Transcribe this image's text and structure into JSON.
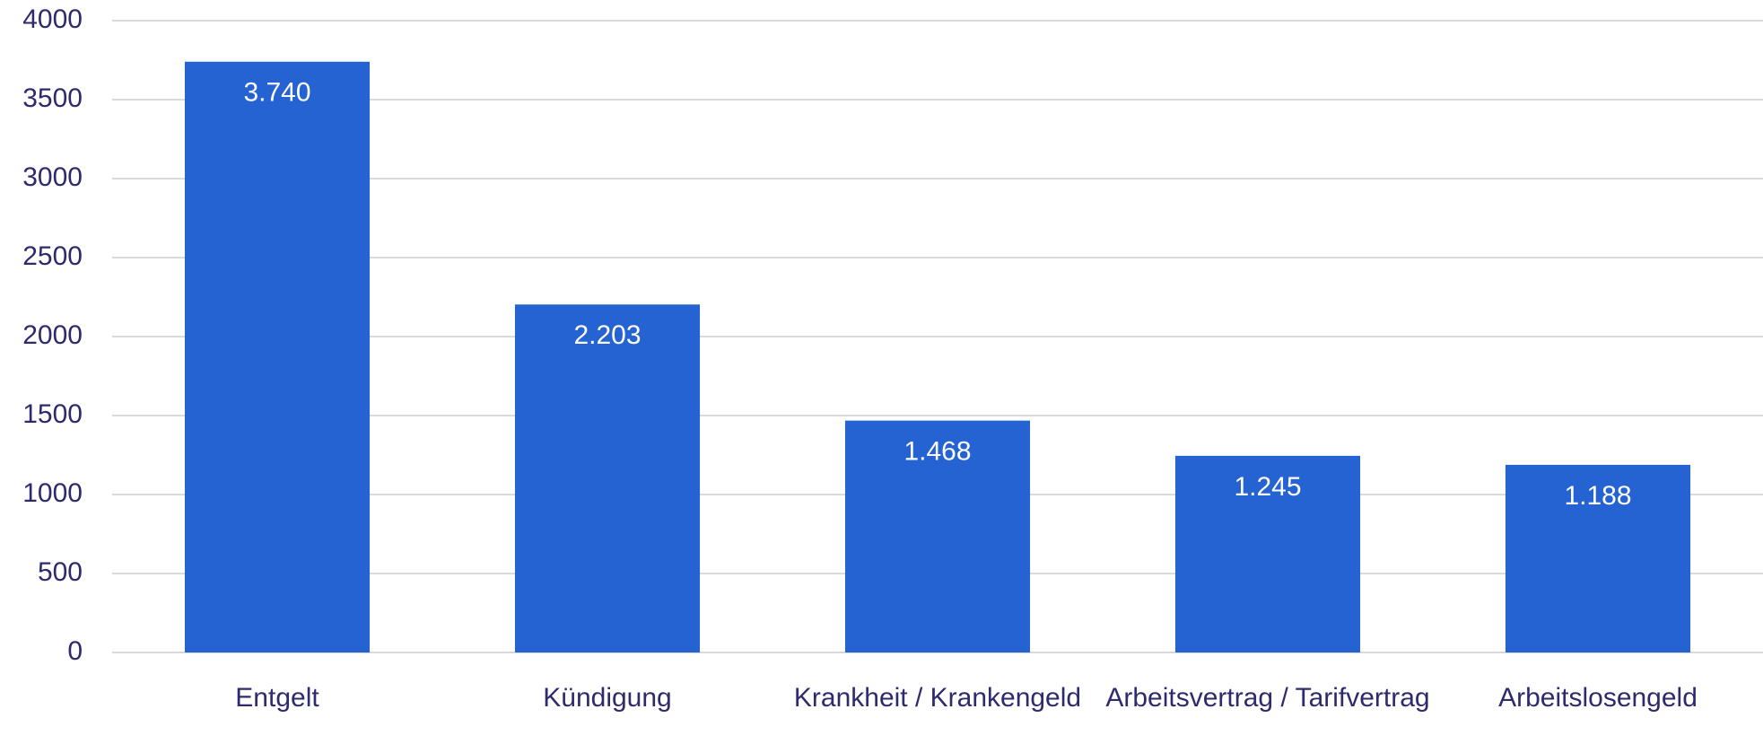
{
  "chart_data": {
    "type": "bar",
    "categories": [
      "Entgelt",
      "Kündigung",
      "Krankheit / Krankengeld",
      "Arbeitsvertrag / Tarifvertrag",
      "Arbeitslosengeld"
    ],
    "values": [
      3740,
      2203,
      1468,
      1245,
      1188
    ],
    "value_labels": [
      "3.740",
      "2.203",
      "1.468",
      "1.245",
      "1.188"
    ],
    "color": "#2463d1",
    "ylim": [
      0,
      4000
    ],
    "yticks": [
      0,
      500,
      1000,
      1500,
      2000,
      2500,
      3000,
      3500,
      4000
    ],
    "grid": true
  }
}
